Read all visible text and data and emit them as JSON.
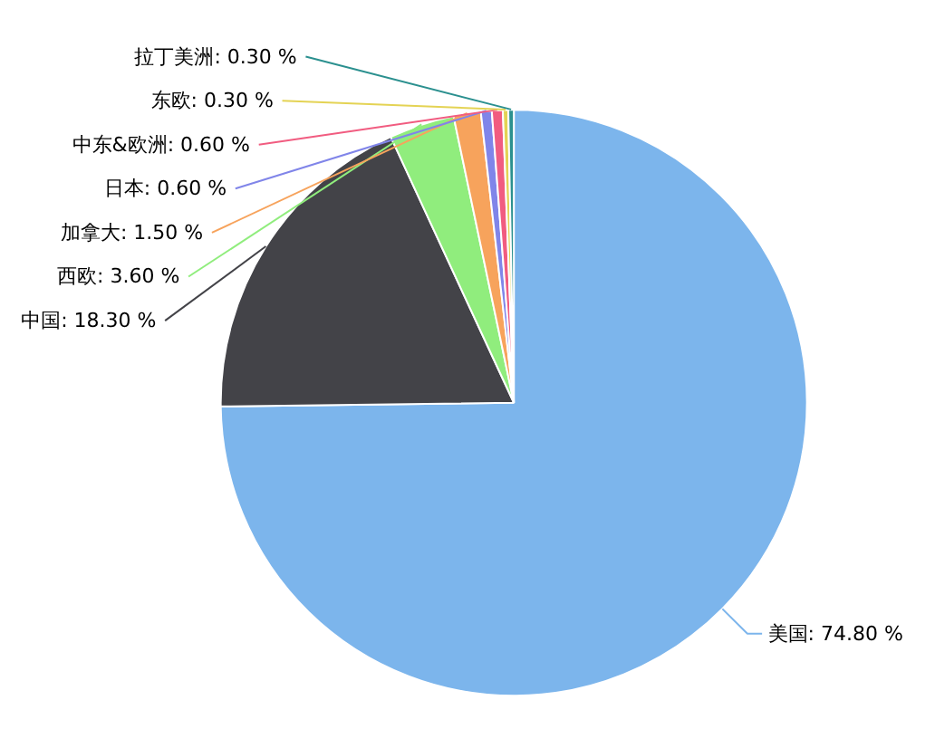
{
  "chart_data": {
    "type": "pie",
    "categories": [
      "美国",
      "中国",
      "西欧",
      "加拿大",
      "日本",
      "中东&欧洲",
      "东欧",
      "拉丁美洲"
    ],
    "values": [
      74.8,
      18.3,
      3.6,
      1.5,
      0.6,
      0.6,
      0.3,
      0.3
    ],
    "value_labels": [
      "74.80 %",
      "18.30 %",
      "3.60 %",
      "1.50 %",
      "0.60 %",
      "0.60 %",
      "0.30 %",
      "0.30 %"
    ],
    "colors": [
      "#7cb5ec",
      "#434348",
      "#90ed7d",
      "#f7a35c",
      "#8085e9",
      "#f15c80",
      "#e4d354",
      "#2b908f"
    ]
  }
}
